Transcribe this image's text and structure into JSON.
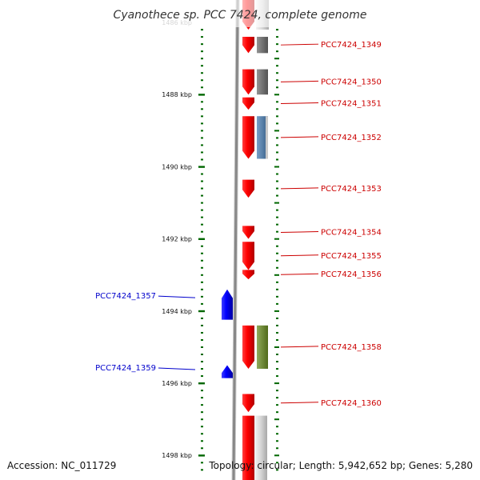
{
  "title": "Cyanothece sp. PCC 7424, complete genome",
  "footer": {
    "accession": "Accession: NC_011729",
    "topology": "Topology: circular; Length: 5,942,652 bp; Genes: 5,280"
  },
  "colors": {
    "forward": "#ff0000",
    "reverse": "#0000ff",
    "label_forward": "#cc0000",
    "label_reverse": "#0000cc",
    "tick": "#006600",
    "backbone": "#888888"
  },
  "ticks": [
    {
      "label": "1486 kbp",
      "kbp": 1486
    },
    {
      "label": "1488 kbp",
      "kbp": 1488
    },
    {
      "label": "1490 kbp",
      "kbp": 1490
    },
    {
      "label": "1492 kbp",
      "kbp": 1492
    },
    {
      "label": "1494 kbp",
      "kbp": 1494
    },
    {
      "label": "1496 kbp",
      "kbp": 1496
    },
    {
      "label": "1498 kbp",
      "kbp": 1498
    }
  ],
  "genes": [
    {
      "name": "PCC7424_1349",
      "strand": "+",
      "start_kbp": 1486.4,
      "end_kbp": 1486.85,
      "feature_color": "#6e6e6e"
    },
    {
      "name": "PCC7424_1350",
      "strand": "+",
      "start_kbp": 1487.3,
      "end_kbp": 1488.0,
      "feature_color": "#6e6e6e"
    },
    {
      "name": "PCC7424_1351",
      "strand": "+",
      "start_kbp": 1488.08,
      "end_kbp": 1488.42,
      "feature_color": ""
    },
    {
      "name": "PCC7424_1352",
      "strand": "+",
      "start_kbp": 1488.6,
      "end_kbp": 1489.78,
      "feature_color": "#4a7fb5"
    },
    {
      "name": "PCC7424_1353",
      "strand": "+",
      "start_kbp": 1490.36,
      "end_kbp": 1490.86,
      "feature_color": ""
    },
    {
      "name": "PCC7424_1354",
      "strand": "+",
      "start_kbp": 1491.64,
      "end_kbp": 1492.0,
      "feature_color": ""
    },
    {
      "name": "PCC7424_1355",
      "strand": "+",
      "start_kbp": 1492.08,
      "end_kbp": 1492.86,
      "feature_color": ""
    },
    {
      "name": "PCC7424_1356",
      "strand": "+",
      "start_kbp": 1492.86,
      "end_kbp": 1493.12,
      "feature_color": ""
    },
    {
      "name": "PCC7424_1357",
      "strand": "-",
      "start_kbp": 1493.4,
      "end_kbp": 1494.24,
      "feature_color": ""
    },
    {
      "name": "PCC7424_1358",
      "strand": "+",
      "start_kbp": 1494.4,
      "end_kbp": 1495.6,
      "feature_color": "#6b8e23"
    },
    {
      "name": "PCC7424_1359",
      "strand": "-",
      "start_kbp": 1495.5,
      "end_kbp": 1495.86,
      "feature_color": ""
    },
    {
      "name": "PCC7424_1360",
      "strand": "+",
      "start_kbp": 1496.3,
      "end_kbp": 1496.8,
      "feature_color": ""
    }
  ]
}
